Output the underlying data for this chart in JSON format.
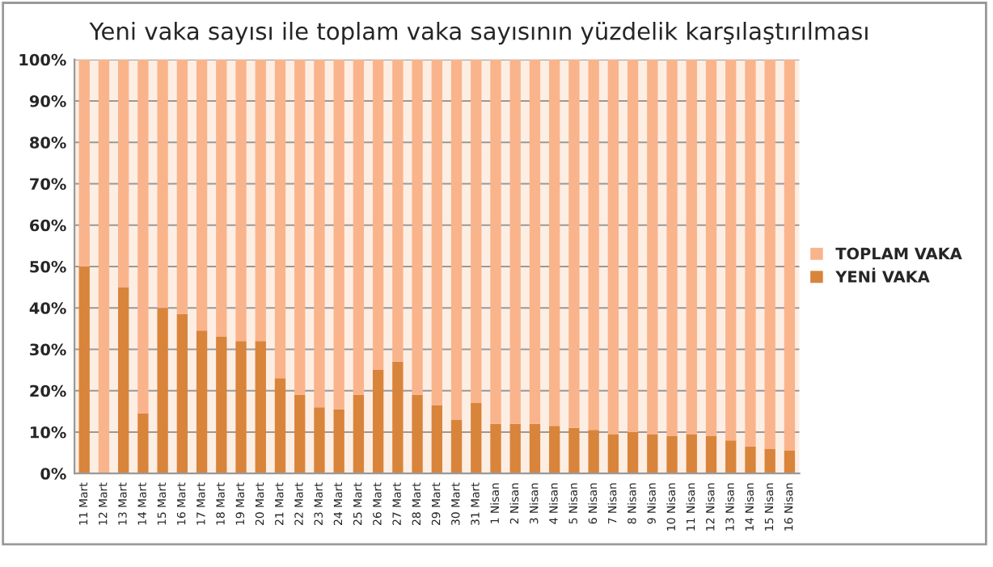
{
  "chart_data": {
    "type": "bar",
    "title": "Yeni vaka sayısı ile toplam vaka sayısının yüzdelik karşılaştırılması",
    "stacked": true,
    "categories": [
      "11 Mart",
      "12 Mart",
      "13 Mart",
      "14 Mart",
      "15 Mart",
      "16 Mart",
      "17 Mart",
      "18 Mart",
      "19 Mart",
      "20 Mart",
      "21 Mart",
      "22 Mart",
      "23 Mart",
      "24 Mart",
      "25 Mart",
      "26 Mart",
      "27 Mart",
      "28 Mart",
      "29 Mart",
      "30 Mart",
      "31 Mart",
      "1 Nisan",
      "2 Nisan",
      "3 Nisan",
      "4 Nisan",
      "5 Nisan",
      "6 Nisan",
      "7 Nisan",
      "8 Nisan",
      "9 Nisan",
      "10 Nisan",
      "11 Nisan",
      "12 Nisan",
      "13 Nisan",
      "14 Nisan",
      "15 Nisan",
      "16 Nisan"
    ],
    "series": [
      {
        "name": "YENİ VAKA",
        "color": "#d9843b",
        "values": [
          50,
          0,
          45,
          14.5,
          40,
          38.5,
          34.5,
          33,
          32,
          32,
          23,
          19,
          16,
          15.5,
          19,
          25,
          27,
          19,
          16.5,
          13,
          17,
          12,
          12,
          12,
          11.5,
          11,
          10.5,
          9.5,
          10,
          9.5,
          9,
          9.5,
          9,
          8,
          6.5,
          6,
          5.5
        ]
      },
      {
        "name": "TOPLAM VAKA",
        "color": "#f9b48c",
        "values": [
          50,
          100,
          55,
          85.5,
          60,
          61.5,
          65.5,
          67,
          68,
          68,
          77,
          81,
          84,
          84.5,
          81,
          75,
          73,
          81,
          83.5,
          87,
          83,
          88,
          88,
          88,
          88.5,
          89,
          89.5,
          90.5,
          90,
          90.5,
          91,
          90.5,
          91,
          92,
          93.5,
          94,
          94.5
        ]
      }
    ],
    "ylim": [
      0,
      100
    ],
    "yticks": [
      {
        "value": 0,
        "label": "0%"
      },
      {
        "value": 10,
        "label": "10%"
      },
      {
        "value": 20,
        "label": "20%"
      },
      {
        "value": 30,
        "label": "30%"
      },
      {
        "value": 40,
        "label": "40%"
      },
      {
        "value": 50,
        "label": "50%"
      },
      {
        "value": 60,
        "label": "60%"
      },
      {
        "value": 70,
        "label": "70%"
      },
      {
        "value": 80,
        "label": "80%"
      },
      {
        "value": 90,
        "label": "90%"
      },
      {
        "value": 100,
        "label": "100%"
      }
    ],
    "grid": "y",
    "legend": "right"
  }
}
